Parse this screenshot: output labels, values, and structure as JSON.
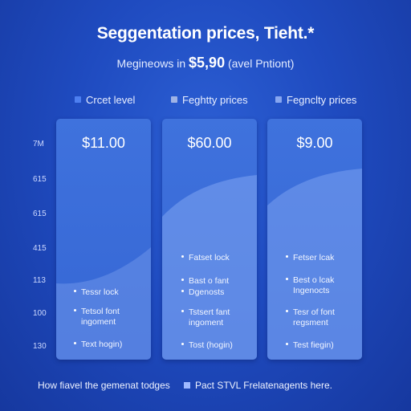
{
  "chart_data": {
    "type": "area",
    "title": "Seggentation prices, Tieht.*",
    "subtitle": {
      "prefix": "Megineows in",
      "price": "$5,90",
      "suffix": "(avel Pntiont)"
    },
    "legend": [
      {
        "name": "Crcet level",
        "color": "#4d7ff0"
      },
      {
        "name": "Feghtty prices",
        "color": "#9fb3e6"
      },
      {
        "name": "Fegnclty prices",
        "color": "#87a6f0"
      }
    ],
    "ytick_labels": [
      "7M",
      "615",
      "615",
      "415",
      "113",
      "100",
      "130"
    ],
    "panels": [
      {
        "price": "$11.00",
        "items": [
          {
            "line1": "Tessr lock",
            "line2": ""
          },
          {
            "line1": "Tetsol font",
            "line2": "ingoment"
          },
          {
            "line1": "Text hogin)",
            "line2": ""
          }
        ]
      },
      {
        "price": "$60.00",
        "items": [
          {
            "line1": "Fatset lock",
            "line2": ""
          },
          {
            "line1": "Bast o fant",
            "line2": ""
          },
          {
            "line1": "Dgenosts",
            "line2": ""
          },
          {
            "line1": "Tstsert fant",
            "line2": "ingoment"
          },
          {
            "line1": "Tost (hogin)",
            "line2": ""
          }
        ]
      },
      {
        "price": "$9.00",
        "items": [
          {
            "line1": "Fetser lcak",
            "line2": ""
          },
          {
            "line1": "Best o lcak",
            "line2": "Ingenocts"
          },
          {
            "line1": "Tesr of font",
            "line2": "regsment"
          },
          {
            "line1": "Test fiegin)",
            "line2": ""
          }
        ]
      }
    ],
    "footer": {
      "left": "How fiavel the gemenat todges",
      "right": "Pact STVL Frelatenagents here."
    }
  }
}
